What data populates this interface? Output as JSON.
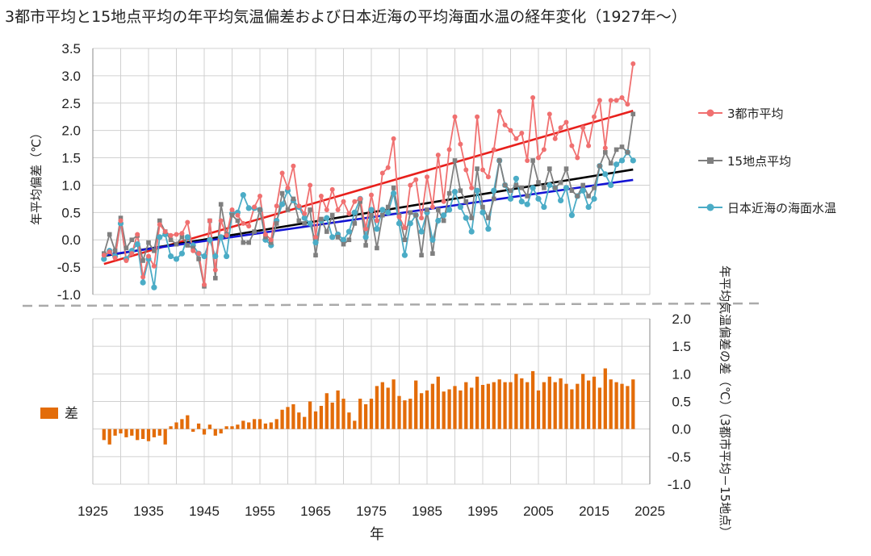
{
  "title": "3都市平均と15地点平均の年平均気温偏差および日本近海の平均海面水温の経年変化（1927年〜）",
  "chart_data": [
    {
      "type": "line",
      "title": "",
      "xlabel": "",
      "ylabel": "年平均偏差（℃）",
      "ylim": [
        -1.0,
        3.5
      ],
      "yticks": [
        "3.5",
        "3.0",
        "2.5",
        "2.0",
        "1.5",
        "1.0",
        "0.5",
        "0.0",
        "-0.5",
        "-1.0"
      ],
      "grid": true,
      "legend_position": "right",
      "colors": {
        "city": "#f07070",
        "station": "#7f7f7f",
        "sea": "#4bacc6",
        "city_trend": "#e8201c",
        "station_trend": "#000000",
        "sea_trend": "#1414d4"
      },
      "x": [
        1927,
        1928,
        1929,
        1930,
        1931,
        1932,
        1933,
        1934,
        1935,
        1936,
        1937,
        1938,
        1939,
        1940,
        1941,
        1942,
        1943,
        1944,
        1945,
        1946,
        1947,
        1948,
        1949,
        1950,
        1951,
        1952,
        1953,
        1954,
        1955,
        1956,
        1957,
        1958,
        1959,
        1960,
        1961,
        1962,
        1963,
        1964,
        1965,
        1966,
        1967,
        1968,
        1969,
        1970,
        1971,
        1972,
        1973,
        1974,
        1975,
        1976,
        1977,
        1978,
        1979,
        1980,
        1981,
        1982,
        1983,
        1984,
        1985,
        1986,
        1987,
        1988,
        1989,
        1990,
        1991,
        1992,
        1993,
        1994,
        1995,
        1996,
        1997,
        1998,
        1999,
        2000,
        2001,
        2002,
        2003,
        2004,
        2005,
        2006,
        2007,
        2008,
        2009,
        2010,
        2011,
        2012,
        2013,
        2014,
        2015,
        2016,
        2017,
        2018,
        2019,
        2020,
        2021,
        2022
      ],
      "series": [
        {
          "name": "3都市平均",
          "values": [
            -0.28,
            -0.22,
            -0.33,
            0.35,
            -0.38,
            -0.25,
            0.1,
            -0.68,
            -0.3,
            -0.48,
            0.28,
            0.15,
            0.08,
            0.1,
            0.12,
            0.32,
            -0.2,
            -0.25,
            -0.82,
            0.35,
            -0.55,
            0.35,
            0.08,
            0.55,
            0.45,
            0.3,
            0.25,
            0.6,
            0.8,
            0.1,
            0.0,
            0.62,
            1.22,
            0.95,
            1.35,
            0.62,
            0.48,
            1.0,
            0.05,
            0.8,
            0.55,
            0.92,
            0.55,
            0.7,
            0.48,
            0.7,
            0.75,
            0.2,
            0.82,
            0.35,
            1.22,
            1.32,
            1.85,
            0.42,
            0.22,
            1.0,
            1.1,
            0.4,
            1.15,
            0.6,
            1.55,
            0.7,
            1.65,
            2.25,
            1.75,
            1.28,
            0.95,
            2.25,
            1.28,
            1.15,
            1.65,
            2.35,
            2.1,
            2.0,
            1.85,
            1.95,
            1.45,
            2.6,
            1.5,
            1.65,
            2.3,
            1.85,
            2.05,
            2.15,
            1.72,
            1.5,
            2.05,
            1.72,
            2.25,
            2.55,
            1.68,
            2.55,
            2.55,
            2.6,
            2.48,
            3.22
          ]
        },
        {
          "name": "15地点平均",
          "values": [
            -0.25,
            0.1,
            -0.2,
            0.4,
            -0.15,
            0.0,
            0.08,
            -0.38,
            -0.05,
            -0.2,
            0.35,
            0.15,
            0.0,
            -0.08,
            0.05,
            -0.1,
            -0.15,
            -0.35,
            -0.85,
            0.35,
            -0.7,
            0.65,
            0.1,
            0.45,
            0.35,
            -0.05,
            -0.05,
            0.15,
            0.55,
            0.05,
            -0.05,
            0.3,
            0.85,
            0.55,
            0.75,
            0.35,
            0.3,
            0.55,
            -0.28,
            0.38,
            0.15,
            0.45,
            0.05,
            -0.08,
            0.0,
            0.3,
            0.7,
            -0.1,
            0.45,
            -0.15,
            0.45,
            0.6,
            0.95,
            0.45,
            0.0,
            0.5,
            0.45,
            -0.28,
            0.55,
            -0.25,
            0.55,
            0.35,
            0.85,
            1.45,
            0.9,
            0.7,
            0.4,
            1.3,
            0.6,
            0.4,
            0.75,
            1.45,
            1.0,
            0.9,
            1.0,
            0.95,
            0.8,
            1.45,
            1.05,
            0.95,
            1.3,
            0.95,
            1.05,
            1.3,
            0.9,
            0.8,
            1.0,
            0.8,
            0.95,
            1.35,
            1.6,
            1.4,
            1.65,
            1.7,
            1.6,
            2.3
          ]
        },
        {
          "name": "日本近海の海面水温",
          "values": [
            -0.35,
            -0.2,
            -0.3,
            0.3,
            -0.35,
            -0.2,
            -0.08,
            -0.78,
            -0.35,
            -0.87,
            0.05,
            0.1,
            -0.3,
            -0.35,
            -0.25,
            0.05,
            -0.1,
            -0.25,
            -0.3,
            0.0,
            -0.3,
            0.05,
            -0.3,
            0.48,
            0.5,
            0.82,
            0.58,
            0.58,
            0.55,
            0.0,
            -0.1,
            0.35,
            0.65,
            0.9,
            0.72,
            0.6,
            0.4,
            0.3,
            -0.05,
            0.35,
            0.4,
            0.05,
            0.1,
            0.0,
            0.15,
            0.5,
            0.75,
            0.05,
            0.55,
            0.2,
            0.55,
            0.5,
            0.85,
            0.3,
            -0.28,
            0.3,
            0.45,
            0.15,
            0.5,
            0.0,
            0.35,
            0.45,
            0.55,
            0.88,
            0.6,
            0.4,
            0.15,
            0.9,
            0.5,
            0.2,
            0.9,
            1.45,
            1.0,
            0.75,
            1.12,
            0.7,
            0.65,
            0.95,
            0.75,
            0.6,
            1.0,
            0.95,
            0.72,
            0.95,
            0.45,
            0.8,
            0.9,
            0.6,
            0.75,
            1.35,
            1.2,
            1.0,
            1.38,
            1.45,
            1.6,
            1.45
          ]
        }
      ]
    },
    {
      "type": "bar",
      "title": "",
      "xlabel": "年",
      "ylabel": "年平均気温偏差の差（℃）（3都市平均－15地点）",
      "ylim": [
        -1.0,
        2.0
      ],
      "yticks": [
        "2.0",
        "1.5",
        "1.0",
        "0.5",
        "0.0",
        "-0.5",
        "-1.0"
      ],
      "xticks": [
        "1925",
        "1935",
        "1945",
        "1955",
        "1965",
        "1975",
        "1985",
        "1995",
        "2005",
        "2015",
        "2025"
      ],
      "grid": true,
      "legend_position": "left",
      "color": "#e36c09",
      "series": [
        {
          "name": "差",
          "values": [
            -0.2,
            -0.28,
            -0.12,
            -0.08,
            -0.15,
            -0.12,
            -0.2,
            -0.18,
            -0.22,
            -0.15,
            -0.12,
            -0.28,
            0.05,
            0.12,
            0.18,
            0.25,
            -0.05,
            0.1,
            -0.1,
            0.08,
            -0.12,
            -0.08,
            0.05,
            0.05,
            0.08,
            0.15,
            0.12,
            0.18,
            0.18,
            0.1,
            0.12,
            0.18,
            0.35,
            0.4,
            0.45,
            0.3,
            0.22,
            0.5,
            0.32,
            0.42,
            0.65,
            0.48,
            0.7,
            0.55,
            0.3,
            0.15,
            0.55,
            0.45,
            0.55,
            0.78,
            0.85,
            0.75,
            0.9,
            0.6,
            0.52,
            0.55,
            0.88,
            0.65,
            0.7,
            0.82,
            0.95,
            0.68,
            0.72,
            0.78,
            0.7,
            0.85,
            0.75,
            0.95,
            0.8,
            0.82,
            0.85,
            0.9,
            0.85,
            0.85,
            1.0,
            0.92,
            0.85,
            1.05,
            0.7,
            0.85,
            0.95,
            0.85,
            0.92,
            0.82,
            0.72,
            0.82,
            1.0,
            0.88,
            0.95,
            0.75,
            1.1,
            0.9,
            0.85,
            0.82,
            0.78,
            0.9
          ]
        }
      ]
    }
  ],
  "legend": {
    "city": "3都市平均",
    "station": "15地点平均",
    "sea": "日本近海の海面水温",
    "diff": "差"
  }
}
